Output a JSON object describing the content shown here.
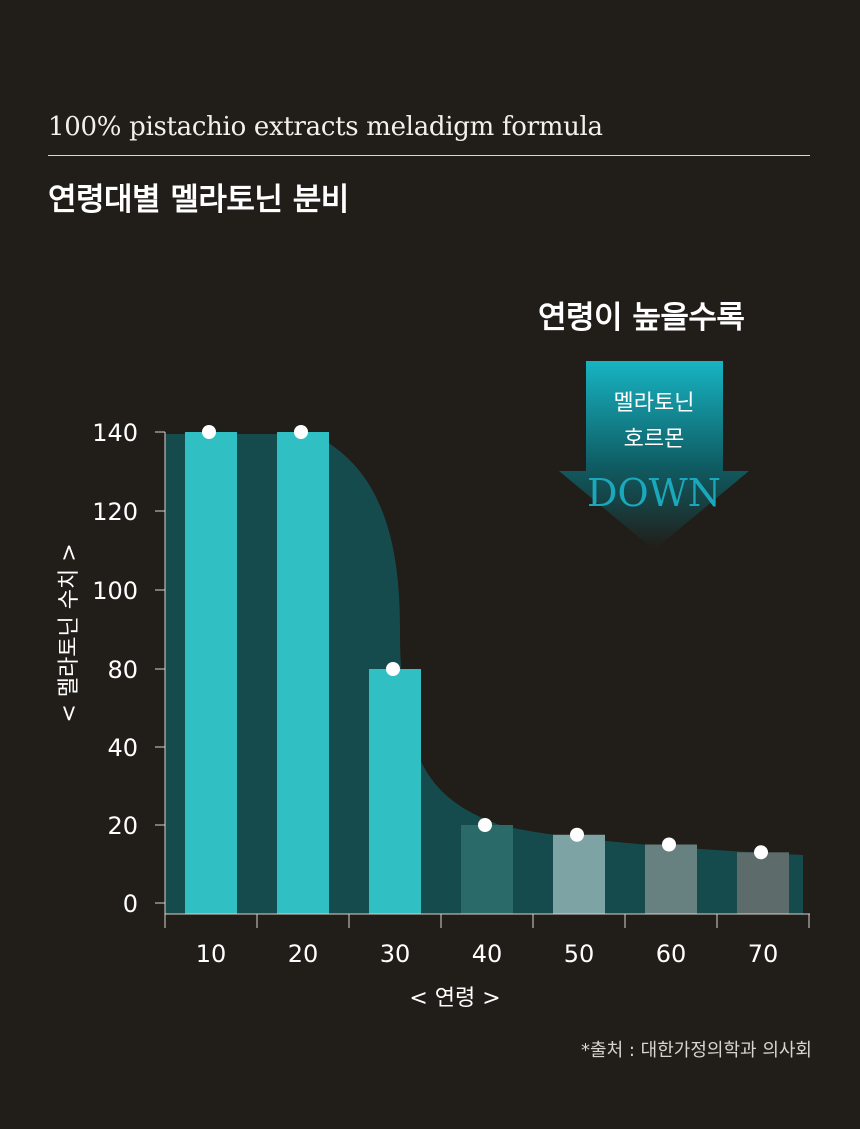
{
  "header": {
    "subtitle": "100% pistachio extracts meladigm formula",
    "title": "연령대별 멜라토닌 분비"
  },
  "callout": {
    "heading": "연령이 높을수록",
    "arrow_line1": "멜라토닌",
    "arrow_line2": "호르몬",
    "arrow_word": "DOWN"
  },
  "colors": {
    "background": "#211d18",
    "curve_fill": "#164b4e",
    "bar_bright": "#30bfc2",
    "bar_dark_teal": "#2a6a68",
    "bar_light": "#7ea3a4",
    "bar_gray1": "#66817f",
    "bar_gray2": "#5d6b6a",
    "arrow_top": "#17b4c3",
    "arrow_bottom": "#211d18",
    "down_text": "#1aa9bc"
  },
  "chart_data": {
    "type": "bar",
    "categories": [
      "10",
      "20",
      "30",
      "40",
      "50",
      "60",
      "70"
    ],
    "values": [
      140,
      140,
      80,
      20,
      17.5,
      15,
      13
    ],
    "y_ticks": [
      "0",
      "20",
      "40",
      "80",
      "100",
      "120",
      "140"
    ],
    "xlabel": "< 연령 >",
    "ylabel": "< 멜라토닌 수치 >",
    "ylim": [
      0,
      140
    ],
    "grid": false,
    "overlay": "area curve behind bars"
  },
  "footer": {
    "source": "*출처 : 대한가정의학과 의사회"
  }
}
